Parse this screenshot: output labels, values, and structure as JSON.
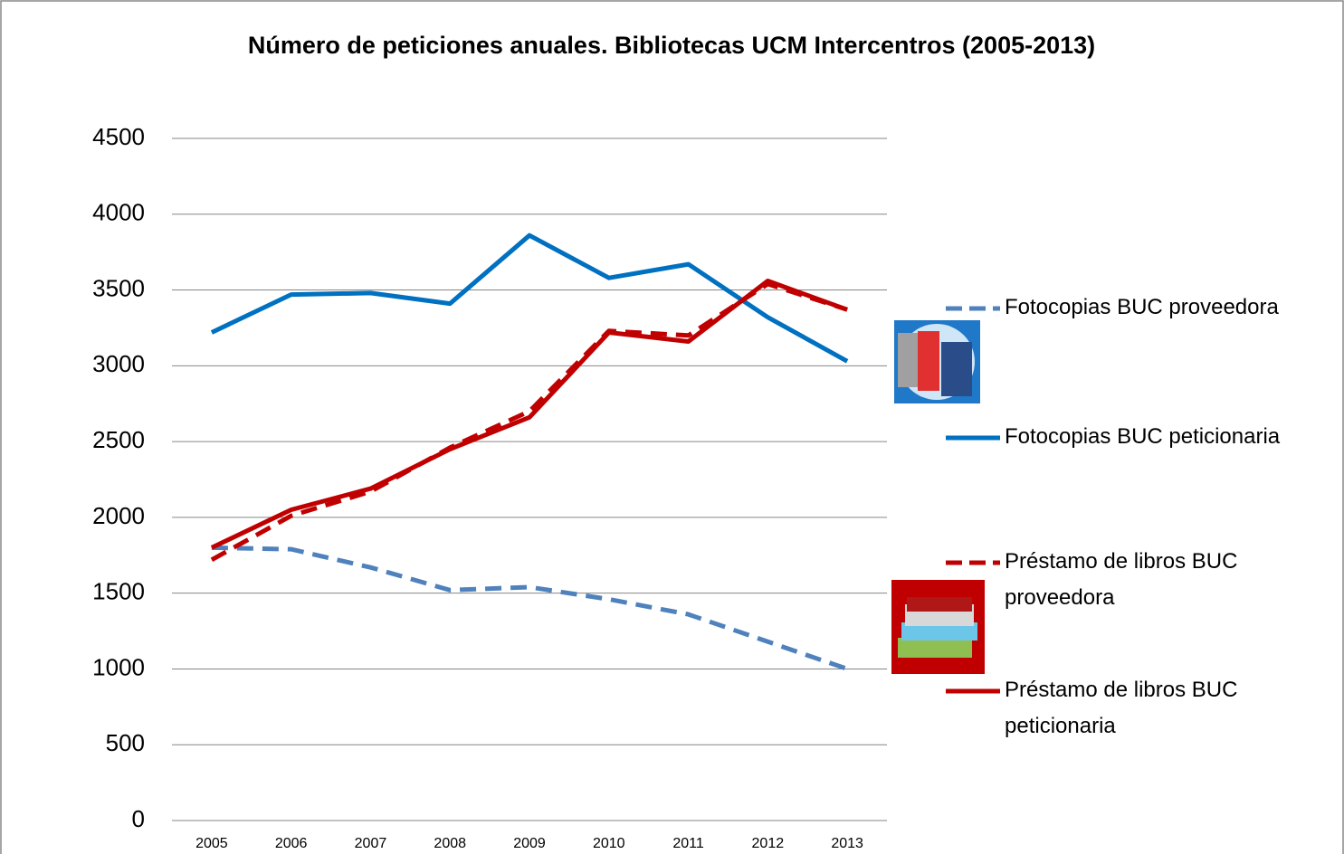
{
  "chart_data": {
    "type": "line",
    "title": "Número de peticiones anuales. Bibliotecas UCM Intercentros (2005-2013)",
    "categories": [
      "2005",
      "2006",
      "2007",
      "2008",
      "2009",
      "2010",
      "2011",
      "2012",
      "2013"
    ],
    "series": [
      {
        "name": "Fotocopias BUC proveedora",
        "color": "#4f81bd",
        "dashed": true,
        "values": [
          1800,
          1790,
          1670,
          1520,
          1540,
          1460,
          1360,
          1180,
          1000
        ]
      },
      {
        "name": "Fotocopias BUC peticionaria",
        "color": "#0070c0",
        "dashed": false,
        "values": [
          3220,
          3470,
          3480,
          3410,
          3860,
          3580,
          3670,
          3320,
          3030
        ]
      },
      {
        "name": "Préstamo de libros BUC proveedora",
        "color": "#c00000",
        "dashed": true,
        "values": [
          1720,
          2010,
          2170,
          2460,
          2700,
          3230,
          3200,
          3540,
          3370
        ]
      },
      {
        "name": "Préstamo de libros BUC peticionaria",
        "color": "#c00000",
        "dashed": false,
        "values": [
          1800,
          2050,
          2190,
          2450,
          2660,
          3220,
          3160,
          3560,
          3370
        ]
      }
    ],
    "ylim": [
      0,
      4500
    ],
    "yticks": [
      0,
      500,
      1000,
      1500,
      2000,
      2500,
      3000,
      3500,
      4000,
      4500
    ],
    "grid": true,
    "legend": "right"
  }
}
